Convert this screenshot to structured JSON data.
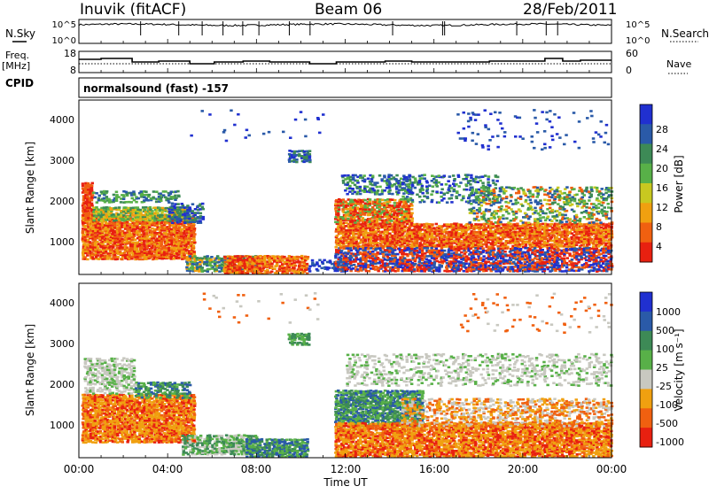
{
  "header": {
    "station": "Inuvik (fitACF)",
    "beam": "Beam 06",
    "date": "28/Feb/2011"
  },
  "top_panels": {
    "nsky_label": "N.Sky",
    "nsearch_label": "N.Search",
    "freq_label": "Freq.",
    "freq_unit": "[MHz]",
    "nave_label": "Nave",
    "cpid_label": "CPID",
    "cpid_value": "normalsound (fast) -157",
    "noise_ticks": [
      "10^5",
      "10^0"
    ],
    "freq_ticks": [
      "18",
      "8"
    ],
    "nave_ticks": [
      "60",
      "0"
    ]
  },
  "axes": {
    "x_ticks": [
      "00:00",
      "04:00",
      "08:00",
      "12:00",
      "16:00",
      "20:00",
      "00:00"
    ],
    "xlabel": "Time UT",
    "range_label": "Slant Range [km]",
    "y_ticks": [
      "4000",
      "3000",
      "2000",
      "1000"
    ]
  },
  "colorbars": {
    "power": {
      "label": "Power [dB]",
      "ticks": [
        "28",
        "24",
        "20",
        "16",
        "12",
        "8",
        "4"
      ],
      "colors": [
        "#2030d0",
        "#2a5aa8",
        "#3d8a56",
        "#58b048",
        "#c8c820",
        "#f0a010",
        "#f06010",
        "#e82010"
      ]
    },
    "velocity": {
      "label": "Velocity [m s⁻¹]",
      "ticks": [
        "1000",
        "500",
        "100",
        "25",
        "-25",
        "-100",
        "-500",
        "-1000"
      ],
      "colors": [
        "#2030d0",
        "#2a5aa8",
        "#3d8a56",
        "#58b048",
        "#c8c8c0",
        "#f0a010",
        "#f06010",
        "#e82010"
      ]
    }
  },
  "chart_data": [
    {
      "type": "heatmap",
      "title": "Power",
      "xlabel": "Time UT",
      "ylabel": "Slant Range [km]",
      "xlim": [
        0,
        24
      ],
      "ylim": [
        200,
        4500
      ],
      "value_label": "Power [dB]",
      "value_range": [
        0,
        30
      ]
    },
    {
      "type": "heatmap",
      "title": "Velocity",
      "xlabel": "Time UT",
      "ylabel": "Slant Range [km]",
      "xlim": [
        0,
        24
      ],
      "ylim": [
        200,
        4500
      ],
      "value_label": "Velocity [m s⁻¹]",
      "value_range": [
        -1000,
        1000
      ]
    }
  ]
}
